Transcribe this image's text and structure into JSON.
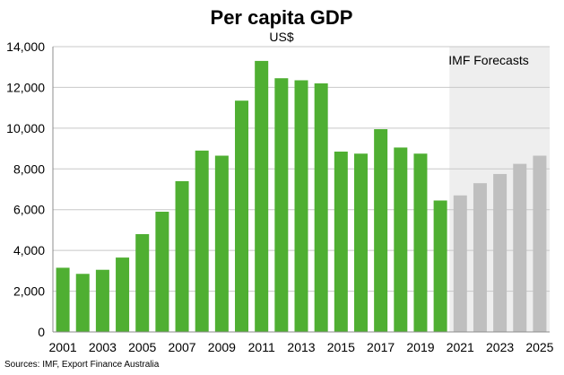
{
  "chart_data": {
    "type": "bar",
    "title": "Per capita GDP",
    "subtitle": "US$",
    "xlabel": "",
    "ylabel": "",
    "ylim": [
      0,
      14000
    ],
    "yticks": [
      0,
      2000,
      4000,
      6000,
      8000,
      10000,
      12000,
      14000
    ],
    "ytick_labels": [
      "0",
      "2,000",
      "4,000",
      "6,000",
      "8,000",
      "10,000",
      "12,000",
      "14,000"
    ],
    "xtick_labels": [
      "2001",
      "2003",
      "2005",
      "2007",
      "2009",
      "2011",
      "2013",
      "2015",
      "2017",
      "2019",
      "2021",
      "2023",
      "2025"
    ],
    "grid": true,
    "categories": [
      "2001",
      "2002",
      "2003",
      "2004",
      "2005",
      "2006",
      "2007",
      "2008",
      "2009",
      "2010",
      "2011",
      "2012",
      "2013",
      "2014",
      "2015",
      "2016",
      "2017",
      "2018",
      "2019",
      "2020",
      "2021",
      "2022",
      "2023",
      "2024",
      "2025"
    ],
    "values": [
      3150,
      2850,
      3050,
      3650,
      4800,
      5900,
      7400,
      8900,
      8650,
      11350,
      13300,
      12450,
      12350,
      12200,
      8850,
      8750,
      9950,
      9050,
      8750,
      6450,
      6700,
      7300,
      7750,
      8250,
      8650
    ],
    "forecast_from": "2021",
    "forecast_label": "IMF Forecasts",
    "colors": {
      "actual": "#4faf32",
      "forecast": "#bfbfbf",
      "forecast_band": "#eeeeee",
      "grid": "#c8c8c8",
      "axis": "#8c8c8c"
    },
    "source": "Sources: IMF, Export Finance Australia"
  }
}
